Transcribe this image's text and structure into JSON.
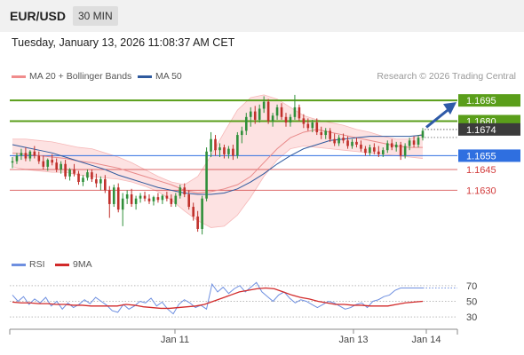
{
  "header": {
    "symbol": "EUR/USD",
    "timeframe": "30 MIN"
  },
  "timestamp": "Tuesday, January 13, 2026 11:08:37 AM CET",
  "legend": {
    "ma20_label": "MA 20 + Bollinger Bands",
    "ma50_label": "MA 50",
    "credit": "Research © 2026 Trading Central",
    "rsi_label": "RSI",
    "ma9_label": "9MA"
  },
  "colors": {
    "resistance": "#5a9e1a",
    "current": "#3b3b3b",
    "pivot": "#2f6fe0",
    "support": "#d23a3a",
    "ma20": "#e88a8a",
    "bollinger_fill": "#fde2e2",
    "ma50": "#2f5a9e",
    "candle_up": "#2f8f3a",
    "candle_down": "#c0302b",
    "rsi": "#6e8fe0",
    "ma9": "#d22a2a"
  },
  "chart_data": [
    {
      "type": "candlestick",
      "x_ticks": [
        "Jan 11",
        "Jan 13",
        "Jan 14"
      ],
      "ylim": [
        1.1584,
        1.1706
      ],
      "grid": false,
      "legend_position": "top-left",
      "levels": [
        {
          "value": 1.1695,
          "label": "1.1695",
          "role": "resistance",
          "style": "badge"
        },
        {
          "value": 1.168,
          "label": "1.1680",
          "role": "resistance",
          "style": "badge"
        },
        {
          "value": 1.1674,
          "label": "1.1674",
          "role": "current",
          "style": "badge"
        },
        {
          "value": 1.1655,
          "label": "1.1655",
          "role": "pivot",
          "style": "badge"
        },
        {
          "value": 1.1645,
          "label": "1.1645",
          "role": "support",
          "style": "text"
        },
        {
          "value": 1.163,
          "label": "1.1630",
          "role": "support",
          "style": "text"
        }
      ],
      "candles_ohlc": [
        [
          1.165,
          1.1654,
          1.1646,
          1.1651
        ],
        [
          1.1651,
          1.1657,
          1.1649,
          1.1655
        ],
        [
          1.1655,
          1.166,
          1.1652,
          1.1657
        ],
        [
          1.1657,
          1.1661,
          1.1651,
          1.1653
        ],
        [
          1.1653,
          1.1659,
          1.1651,
          1.1658
        ],
        [
          1.1658,
          1.1662,
          1.1653,
          1.1655
        ],
        [
          1.1655,
          1.1658,
          1.1649,
          1.1651
        ],
        [
          1.1651,
          1.1655,
          1.1645,
          1.1647
        ],
        [
          1.1647,
          1.1653,
          1.1644,
          1.1652
        ],
        [
          1.1652,
          1.1656,
          1.1648,
          1.165
        ],
        [
          1.165,
          1.1653,
          1.1643,
          1.1645
        ],
        [
          1.1645,
          1.1651,
          1.1642,
          1.1649
        ],
        [
          1.1649,
          1.1652,
          1.1638,
          1.164
        ],
        [
          1.164,
          1.1646,
          1.1637,
          1.1645
        ],
        [
          1.1645,
          1.1649,
          1.164,
          1.1642
        ],
        [
          1.1642,
          1.1644,
          1.1634,
          1.1636
        ],
        [
          1.1636,
          1.1641,
          1.1633,
          1.1639
        ],
        [
          1.1639,
          1.1645,
          1.1637,
          1.1643
        ],
        [
          1.1643,
          1.1645,
          1.1636,
          1.1638
        ],
        [
          1.1638,
          1.1642,
          1.1632,
          1.1635
        ],
        [
          1.1635,
          1.164,
          1.163,
          1.1638
        ],
        [
          1.1638,
          1.1641,
          1.1628,
          1.163
        ],
        [
          1.163,
          1.1633,
          1.161,
          1.162
        ],
        [
          1.162,
          1.1634,
          1.1618,
          1.1632
        ],
        [
          1.1632,
          1.1635,
          1.1614,
          1.1616
        ],
        [
          1.1616,
          1.1628,
          1.1604,
          1.1624
        ],
        [
          1.1624,
          1.163,
          1.162,
          1.1627
        ],
        [
          1.1627,
          1.1631,
          1.1618,
          1.162
        ],
        [
          1.162,
          1.1626,
          1.1616,
          1.1624
        ],
        [
          1.1624,
          1.1628,
          1.1621,
          1.1626
        ],
        [
          1.1626,
          1.1629,
          1.1622,
          1.1624
        ],
        [
          1.1624,
          1.1627,
          1.162,
          1.1622
        ],
        [
          1.1622,
          1.1626,
          1.1619,
          1.1625
        ],
        [
          1.1625,
          1.1628,
          1.1621,
          1.1623
        ],
        [
          1.1623,
          1.1627,
          1.162,
          1.1626
        ],
        [
          1.1626,
          1.1629,
          1.1622,
          1.1624
        ],
        [
          1.1624,
          1.1627,
          1.1618,
          1.162
        ],
        [
          1.162,
          1.1628,
          1.1618,
          1.1626
        ],
        [
          1.1626,
          1.1634,
          1.1624,
          1.1632
        ],
        [
          1.1632,
          1.1635,
          1.1625,
          1.1627
        ],
        [
          1.1627,
          1.163,
          1.1616,
          1.1618
        ],
        [
          1.1618,
          1.1621,
          1.1608,
          1.1611
        ],
        [
          1.1611,
          1.1615,
          1.16,
          1.1602
        ],
        [
          1.1602,
          1.1626,
          1.1598,
          1.1624
        ],
        [
          1.1624,
          1.1661,
          1.1622,
          1.1658
        ],
        [
          1.1658,
          1.1672,
          1.1654,
          1.1667
        ],
        [
          1.1667,
          1.167,
          1.1655,
          1.1659
        ],
        [
          1.1659,
          1.1664,
          1.1654,
          1.1661
        ],
        [
          1.1661,
          1.1663,
          1.1653,
          1.1656
        ],
        [
          1.1656,
          1.1662,
          1.1653,
          1.166
        ],
        [
          1.166,
          1.1663,
          1.1652,
          1.1655
        ],
        [
          1.1655,
          1.1672,
          1.1653,
          1.167
        ],
        [
          1.167,
          1.1676,
          1.1664,
          1.1673
        ],
        [
          1.1673,
          1.1686,
          1.167,
          1.1683
        ],
        [
          1.1683,
          1.169,
          1.1676,
          1.1687
        ],
        [
          1.1687,
          1.1691,
          1.1678,
          1.1681
        ],
        [
          1.1681,
          1.1692,
          1.1679,
          1.1689
        ],
        [
          1.1689,
          1.1698,
          1.1686,
          1.1694
        ],
        [
          1.1694,
          1.1696,
          1.1678,
          1.168
        ],
        [
          1.168,
          1.1686,
          1.1676,
          1.1684
        ],
        [
          1.1684,
          1.1692,
          1.1681,
          1.169
        ],
        [
          1.169,
          1.1693,
          1.1681,
          1.1683
        ],
        [
          1.1683,
          1.1686,
          1.1676,
          1.1679
        ],
        [
          1.1679,
          1.1685,
          1.1676,
          1.1683
        ],
        [
          1.1683,
          1.1699,
          1.1681,
          1.169
        ],
        [
          1.169,
          1.1692,
          1.168,
          1.1682
        ],
        [
          1.1682,
          1.1685,
          1.1675,
          1.1678
        ],
        [
          1.1678,
          1.1682,
          1.1673,
          1.1675
        ],
        [
          1.1675,
          1.1681,
          1.1672,
          1.1679
        ],
        [
          1.1679,
          1.1682,
          1.167,
          1.1672
        ],
        [
          1.1672,
          1.1676,
          1.1667,
          1.167
        ],
        [
          1.167,
          1.1675,
          1.1667,
          1.1673
        ],
        [
          1.1673,
          1.1675,
          1.1665,
          1.1667
        ],
        [
          1.1667,
          1.1671,
          1.1662,
          1.1664
        ],
        [
          1.1664,
          1.167,
          1.1662,
          1.1668
        ],
        [
          1.1668,
          1.1671,
          1.1664,
          1.1666
        ],
        [
          1.1666,
          1.1669,
          1.166,
          1.1662
        ],
        [
          1.1662,
          1.1667,
          1.166,
          1.1665
        ],
        [
          1.1665,
          1.1668,
          1.1661,
          1.1663
        ],
        [
          1.1663,
          1.1666,
          1.1658,
          1.166
        ],
        [
          1.166,
          1.1662,
          1.1655,
          1.1657
        ],
        [
          1.1657,
          1.1663,
          1.1655,
          1.1661
        ],
        [
          1.1661,
          1.1664,
          1.1656,
          1.1658
        ],
        [
          1.1658,
          1.1662,
          1.1654,
          1.1656
        ],
        [
          1.1656,
          1.1661,
          1.1654,
          1.1659
        ],
        [
          1.1659,
          1.1666,
          1.1657,
          1.1664
        ],
        [
          1.1664,
          1.1667,
          1.1659,
          1.1661
        ],
        [
          1.1661,
          1.1665,
          1.1658,
          1.1663
        ],
        [
          1.1663,
          1.1665,
          1.1652,
          1.1655
        ],
        [
          1.1655,
          1.1664,
          1.1653,
          1.1662
        ],
        [
          1.1662,
          1.1668,
          1.1659,
          1.1666
        ],
        [
          1.1666,
          1.1669,
          1.1661,
          1.1663
        ],
        [
          1.1663,
          1.167,
          1.1661,
          1.1668
        ],
        [
          1.1668,
          1.1675,
          1.1666,
          1.1673
        ]
      ],
      "ma20": [
        1.1657,
        1.1656,
        1.1655,
        1.1654,
        1.1653,
        1.1651,
        1.165,
        1.1648,
        1.1646,
        1.1643,
        1.164,
        1.1637,
        1.1634,
        1.163,
        1.1628,
        1.1629,
        1.1631,
        1.1634,
        1.164,
        1.165,
        1.166,
        1.1668,
        1.1672,
        1.1674,
        1.1672,
        1.167,
        1.1668,
        1.1666,
        1.1664,
        1.1662,
        1.1661,
        1.1661
      ],
      "bollinger_upper": [
        1.1667,
        1.1667,
        1.1666,
        1.1665,
        1.1663,
        1.1661,
        1.166,
        1.1657,
        1.1654,
        1.165,
        1.1645,
        1.164,
        1.1636,
        1.1634,
        1.164,
        1.1655,
        1.1672,
        1.1688,
        1.1697,
        1.1699,
        1.1696,
        1.169,
        1.1684,
        1.1681,
        1.1679,
        1.1677,
        1.1674,
        1.1672,
        1.1669,
        1.1667,
        1.1667,
        1.1671
      ],
      "bollinger_lower": [
        1.1647,
        1.1645,
        1.1644,
        1.1643,
        1.1643,
        1.1641,
        1.164,
        1.1639,
        1.1638,
        1.1636,
        1.1633,
        1.1629,
        1.1623,
        1.1615,
        1.1608,
        1.1603,
        1.1604,
        1.1612,
        1.1625,
        1.164,
        1.1652,
        1.166,
        1.1662,
        1.1661,
        1.166,
        1.1659,
        1.1658,
        1.1657,
        1.1656,
        1.1655,
        1.1654,
        1.1653
      ],
      "ma50": [
        1.1663,
        1.1661,
        1.1659,
        1.1657,
        1.1654,
        1.1651,
        1.1648,
        1.1645,
        1.1641,
        1.1638,
        1.1635,
        1.1632,
        1.163,
        1.1628,
        1.1627,
        1.1627,
        1.1628,
        1.1631,
        1.1636,
        1.1642,
        1.1649,
        1.1655,
        1.166,
        1.1663,
        1.1666,
        1.1667,
        1.1668,
        1.1669,
        1.1669,
        1.1669,
        1.1669,
        1.167
      ],
      "projection_target": 1.1695
    },
    {
      "type": "line",
      "series": [
        {
          "name": "RSI",
          "values": [
            58,
            50,
            56,
            46,
            53,
            48,
            55,
            44,
            50,
            40,
            48,
            42,
            46,
            52,
            47,
            55,
            50,
            45,
            38,
            36,
            46,
            40,
            44,
            50,
            48,
            54,
            44,
            49,
            40,
            34,
            46,
            52,
            48,
            42,
            45,
            40,
            72,
            62,
            68,
            60,
            66,
            70,
            62,
            68,
            74,
            62,
            56,
            50,
            58,
            62,
            54,
            48,
            52,
            50,
            46,
            42,
            46,
            50,
            48,
            44,
            40,
            42,
            46,
            48,
            42,
            50,
            52,
            56,
            58,
            64,
            67,
            67,
            67,
            67,
            67
          ]
        },
        {
          "name": "9MA",
          "values": [
            49,
            48,
            48,
            47,
            47,
            46,
            46,
            45,
            45,
            44,
            44,
            44,
            44,
            46,
            45,
            43,
            42,
            41,
            41,
            42,
            43,
            44,
            46,
            50,
            54,
            58,
            62,
            64,
            66,
            67,
            66,
            62,
            58,
            55,
            53,
            50,
            48,
            46,
            46,
            45,
            45,
            44,
            44,
            44,
            46,
            48,
            49,
            50
          ]
        }
      ],
      "y_ticks": [
        70,
        50,
        30
      ],
      "ylim": [
        20,
        80
      ]
    }
  ]
}
